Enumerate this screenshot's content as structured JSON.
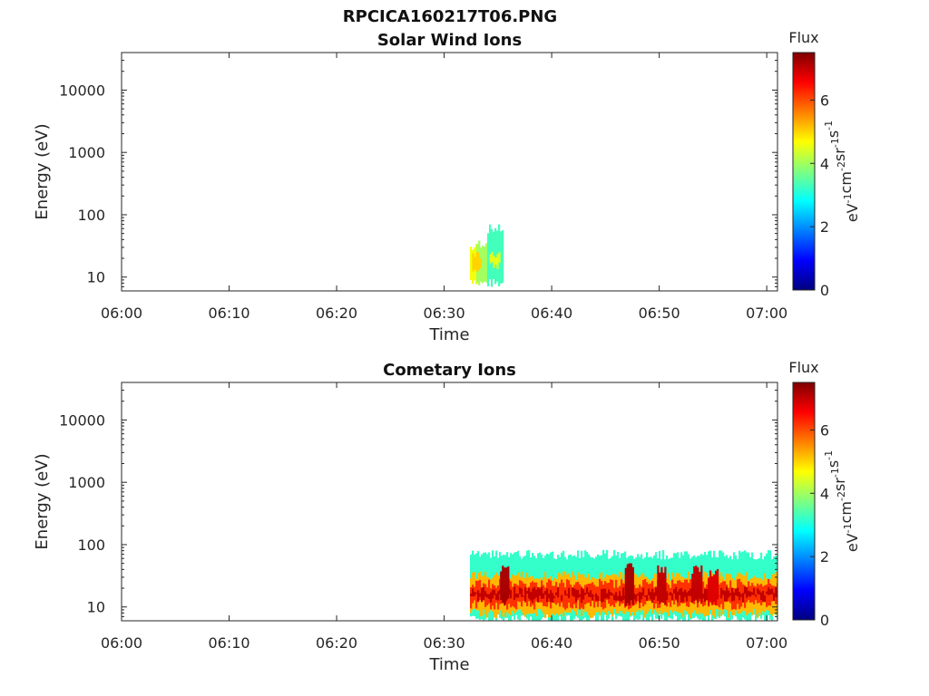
{
  "page_title": "RPCICA160217T06.PNG",
  "colors": {
    "colormap": [
      "#00007f",
      "#0000ff",
      "#007fff",
      "#00ffff",
      "#7fff7f",
      "#ffff00",
      "#ff7f00",
      "#ff0000",
      "#7f0000"
    ]
  },
  "chart_data": [
    {
      "type": "heatmap",
      "title": "Solar Wind Ions",
      "xlabel": "Time",
      "ylabel": "Energy (eV)",
      "x_ticks": [
        "06:00",
        "06:10",
        "06:20",
        "06:30",
        "06:40",
        "06:50",
        "07:00"
      ],
      "xlim_minutes": [
        0,
        61
      ],
      "y_scale": "log",
      "ylim": [
        6,
        40000
      ],
      "y_ticks": [
        "10",
        "100",
        "1000",
        "10000"
      ],
      "colorbar": {
        "label": "Flux",
        "units": "eV^-1 cm^-2 sr^-1 s^-1",
        "range": [
          0,
          7.5
        ],
        "ticks": [
          "0",
          "2",
          "4",
          "6"
        ]
      },
      "blocks": [
        {
          "t0": 32.4,
          "t1": 33.0,
          "e_low": 9,
          "e_high": 30,
          "flux": 4.6
        },
        {
          "t0": 33.0,
          "t1": 34.0,
          "e_low": 8,
          "e_high": 35,
          "flux": 4.0
        },
        {
          "t0": 34.0,
          "t1": 35.5,
          "e_low": 8,
          "e_high": 60,
          "flux": 3.3
        },
        {
          "t0": 32.6,
          "t1": 33.4,
          "e_low": 14,
          "e_high": 22,
          "flux": 5.0
        },
        {
          "t0": 34.2,
          "t1": 35.2,
          "e_low": 16,
          "e_high": 24,
          "flux": 4.5
        }
      ]
    },
    {
      "type": "heatmap",
      "title": "Cometary Ions",
      "xlabel": "Time",
      "ylabel": "Energy (eV)",
      "x_ticks": [
        "06:00",
        "06:10",
        "06:20",
        "06:30",
        "06:40",
        "06:50",
        "07:00"
      ],
      "xlim_minutes": [
        0,
        61
      ],
      "y_scale": "log",
      "ylim": [
        6,
        40000
      ],
      "y_ticks": [
        "10",
        "100",
        "1000",
        "10000"
      ],
      "colorbar": {
        "label": "Flux",
        "units": "eV^-1 cm^-2 sr^-1 s^-1",
        "range": [
          0,
          7.5
        ],
        "ticks": [
          "0",
          "2",
          "4",
          "6"
        ]
      },
      "blocks": [
        {
          "t0": 32.4,
          "t1": 61.0,
          "e_low": 6.5,
          "e_high": 70,
          "flux": 3.2
        },
        {
          "t0": 32.4,
          "t1": 61.0,
          "e_low": 8,
          "e_high": 32,
          "flux": 5.2
        },
        {
          "t0": 32.4,
          "t1": 61.0,
          "e_low": 11,
          "e_high": 24,
          "flux": 6.2
        },
        {
          "t0": 32.4,
          "t1": 61.0,
          "e_low": 14,
          "e_high": 18,
          "flux": 7.0
        },
        {
          "t0": 35.2,
          "t1": 36.0,
          "e_low": 12,
          "e_high": 45,
          "flux": 7.2
        },
        {
          "t0": 46.8,
          "t1": 47.6,
          "e_low": 12,
          "e_high": 45,
          "flux": 7.2
        },
        {
          "t0": 49.8,
          "t1": 50.6,
          "e_low": 12,
          "e_high": 40,
          "flux": 7.0
        },
        {
          "t0": 53.0,
          "t1": 54.0,
          "e_low": 12,
          "e_high": 40,
          "flux": 7.0
        },
        {
          "t0": 54.5,
          "t1": 55.5,
          "e_low": 12,
          "e_high": 35,
          "flux": 6.8
        }
      ]
    }
  ]
}
